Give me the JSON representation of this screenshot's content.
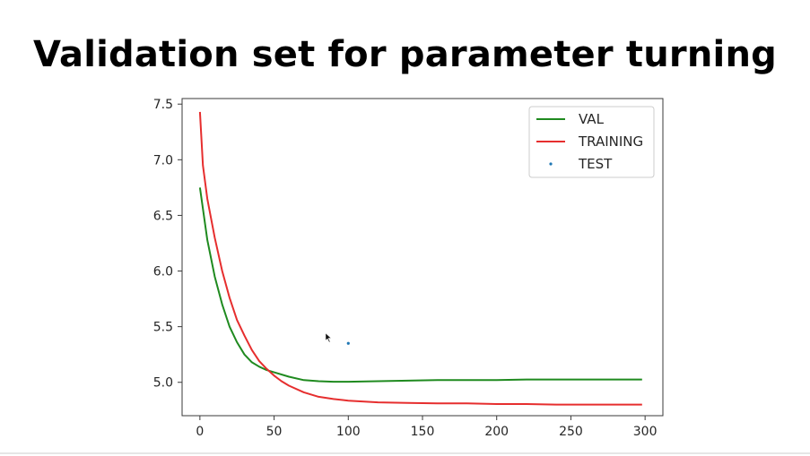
{
  "slide": {
    "title": "Validation set for parameter turning"
  },
  "chart_data": {
    "type": "line",
    "xlim": [
      -12,
      312
    ],
    "ylim": [
      4.7,
      7.55
    ],
    "xticks": [
      0,
      50,
      100,
      150,
      200,
      250,
      300
    ],
    "yticks": [
      5.0,
      5.5,
      6.0,
      6.5,
      7.0,
      7.5
    ],
    "xtick_labels": [
      "0",
      "50",
      "100",
      "150",
      "200",
      "250",
      "300"
    ],
    "ytick_labels": [
      "5.0",
      "5.5",
      "6.0",
      "6.5",
      "7.0",
      "7.5"
    ],
    "grid": false,
    "legend_position": "top-right",
    "series": [
      {
        "name": "VAL",
        "kind": "line",
        "color": "#1f8a1f",
        "x": [
          0,
          5,
          10,
          15,
          20,
          25,
          30,
          35,
          40,
          45,
          50,
          60,
          70,
          80,
          90,
          100,
          120,
          140,
          160,
          180,
          200,
          220,
          240,
          260,
          280,
          298
        ],
        "y": [
          6.75,
          6.28,
          5.95,
          5.7,
          5.5,
          5.36,
          5.25,
          5.18,
          5.14,
          5.11,
          5.09,
          5.05,
          5.02,
          5.01,
          5.005,
          5.005,
          5.01,
          5.015,
          5.02,
          5.02,
          5.02,
          5.025,
          5.025,
          5.025,
          5.025,
          5.025
        ]
      },
      {
        "name": "TRAINING",
        "kind": "line",
        "color": "#e62e2e",
        "x": [
          0,
          2,
          5,
          10,
          15,
          20,
          25,
          30,
          35,
          40,
          45,
          50,
          55,
          60,
          70,
          80,
          90,
          100,
          120,
          140,
          160,
          180,
          200,
          220,
          240,
          260,
          280,
          298
        ],
        "y": [
          7.43,
          6.95,
          6.65,
          6.3,
          6.0,
          5.76,
          5.56,
          5.42,
          5.29,
          5.19,
          5.12,
          5.06,
          5.01,
          4.97,
          4.91,
          4.87,
          4.85,
          4.835,
          4.82,
          4.815,
          4.81,
          4.81,
          4.805,
          4.805,
          4.8,
          4.8,
          4.8,
          4.8
        ]
      },
      {
        "name": "TEST",
        "kind": "scatter",
        "color": "#1f77b4",
        "x": [
          100
        ],
        "y": [
          5.35
        ]
      }
    ]
  }
}
